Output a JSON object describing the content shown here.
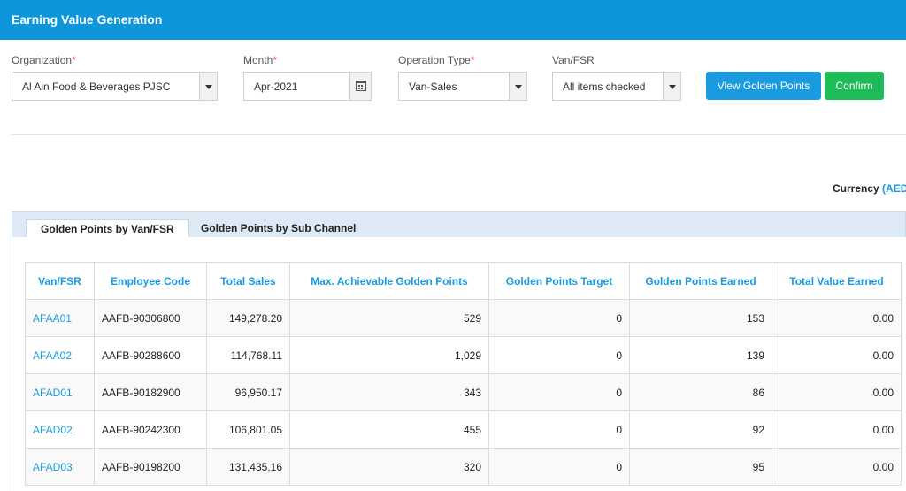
{
  "header": {
    "title": "Earning Value Generation"
  },
  "filters": {
    "organization": {
      "label": "Organization",
      "required_mark": "*",
      "value": "Al Ain Food & Beverages PJSC"
    },
    "month": {
      "label": "Month",
      "required_mark": "*",
      "value": "Apr-2021"
    },
    "operation_type": {
      "label": "Operation Type",
      "required_mark": "*",
      "value": "Van-Sales"
    },
    "van_fsr": {
      "label": "Van/FSR",
      "value": "All items checked"
    }
  },
  "buttons": {
    "view_golden_points": "View Golden Points",
    "confirm": "Confirm"
  },
  "currency": {
    "label": "Currency",
    "code": "(AED"
  },
  "tabs": [
    {
      "label": "Golden Points by Van/FSR",
      "active": true
    },
    {
      "label": "Golden Points by Sub Channel",
      "active": false
    }
  ],
  "table": {
    "columns": [
      "Van/FSR",
      "Employee Code",
      "Total Sales",
      "Max. Achievable Golden Points",
      "Golden Points Target",
      "Golden Points Earned",
      "Total Value Earned"
    ],
    "rows": [
      [
        "AFAA01",
        "AAFB-90306800",
        "149,278.20",
        "529",
        "0",
        "153",
        "0.00"
      ],
      [
        "AFAA02",
        "AAFB-90288600",
        "114,768.11",
        "1,029",
        "0",
        "139",
        "0.00"
      ],
      [
        "AFAD01",
        "AAFB-90182900",
        "96,950.17",
        "343",
        "0",
        "86",
        "0.00"
      ],
      [
        "AFAD02",
        "AAFB-90242300",
        "106,801.05",
        "455",
        "0",
        "92",
        "0.00"
      ],
      [
        "AFAD03",
        "AAFB-90198200",
        "131,435.16",
        "320",
        "0",
        "95",
        "0.00"
      ]
    ]
  },
  "colors": {
    "header_bg": "#0e96da",
    "accent": "#1a9be0",
    "confirm": "#1ebc58",
    "required": "#e53935"
  },
  "icons": {
    "date_picker": "calendar-icon",
    "dropdown": "chevron-down-icon"
  }
}
